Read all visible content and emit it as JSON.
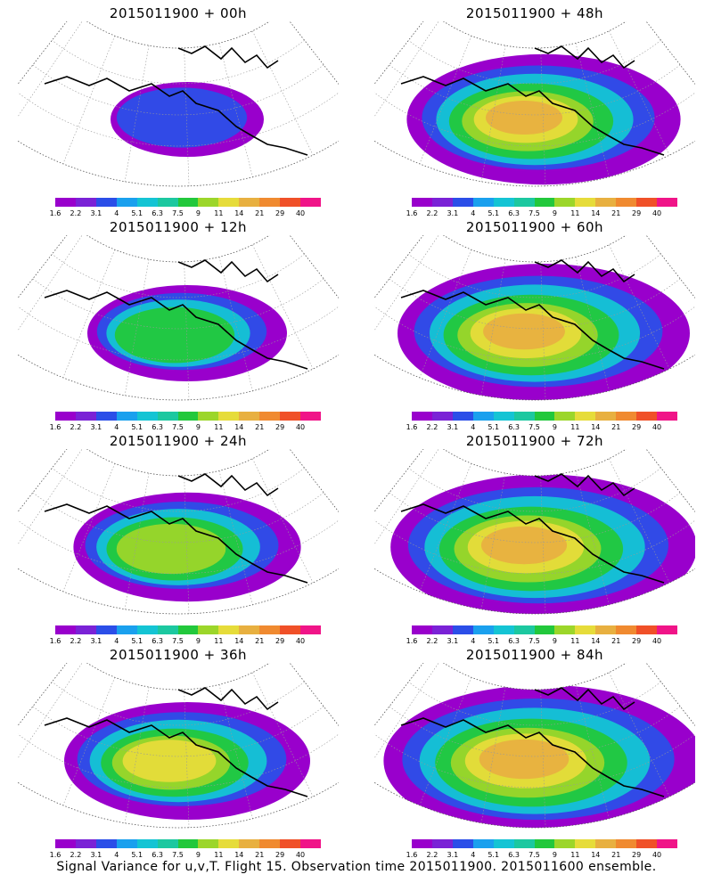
{
  "panels": [
    {
      "title": "2015011900 + 00h",
      "intensity": 0.2
    },
    {
      "title": "2015011900 + 48h",
      "intensity": 0.72
    },
    {
      "title": "2015011900 + 12h",
      "intensity": 0.4
    },
    {
      "title": "2015011900 + 60h",
      "intensity": 0.8
    },
    {
      "title": "2015011900 + 24h",
      "intensity": 0.52
    },
    {
      "title": "2015011900 + 72h",
      "intensity": 0.86
    },
    {
      "title": "2015011900 + 36h",
      "intensity": 0.6
    },
    {
      "title": "2015011900 + 84h",
      "intensity": 0.92
    }
  ],
  "colorbar": {
    "colors": [
      "#9900cc",
      "#7a22d6",
      "#2b4ee8",
      "#1aa0ee",
      "#14c4d4",
      "#1cc8a0",
      "#22c83c",
      "#9cd62a",
      "#e6dc3a",
      "#e8b040",
      "#f08a30",
      "#f05028",
      "#f01488"
    ],
    "labels": [
      "1.6",
      "2.2",
      "3.1",
      "4",
      "5.1",
      "6.3",
      "7.5",
      "9",
      "11",
      "14",
      "21",
      "29",
      "40"
    ]
  },
  "footer": "Signal Variance for u,v,T. Flight 15. Observation time 2015011900. 2015011600 ensemble."
}
